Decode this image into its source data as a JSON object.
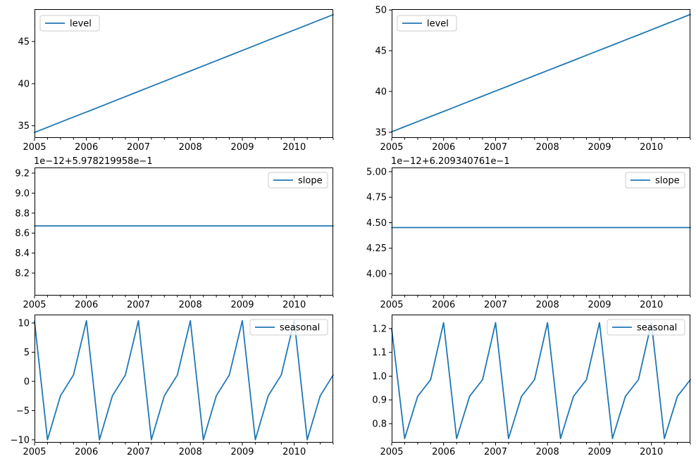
{
  "figure": {
    "background_color": "#ffffff",
    "axis_color": "#000000",
    "legend_border_color": "#cccccc"
  },
  "chart_data": {
    "type": "line",
    "line_color": "#1f77b4",
    "grid": false,
    "xlim": [
      2005.0,
      2010.75
    ],
    "x": [
      2005.0,
      2005.25,
      2005.5,
      2005.75,
      2006.0,
      2006.25,
      2006.5,
      2006.75,
      2007.0,
      2007.25,
      2007.5,
      2007.75,
      2008.0,
      2008.25,
      2008.5,
      2008.75,
      2009.0,
      2009.25,
      2009.5,
      2009.75,
      2010.0,
      2010.25,
      2010.5,
      2010.75
    ],
    "x_tick_values": [
      2005,
      2006,
      2007,
      2008,
      2009,
      2010
    ],
    "x_tick_labels": [
      "2005",
      "2006",
      "2007",
      "2008",
      "2009",
      "2010"
    ],
    "x_minor_tick_interval": 0.25,
    "subplots": [
      {
        "name": "level-additive",
        "row": 0,
        "col": 0,
        "legend": "level",
        "legend_position": "upper left",
        "ylim": [
          33.55,
          48.85
        ],
        "yticks": {
          "values": [
            35,
            40,
            45
          ],
          "labels": [
            "35",
            "40",
            "45"
          ]
        },
        "offset_text": null,
        "values": [
          34.2,
          34.81,
          35.42,
          36.03,
          36.63,
          37.24,
          37.85,
          38.46,
          39.07,
          39.68,
          40.29,
          40.9,
          41.5,
          42.11,
          42.72,
          43.33,
          43.94,
          44.55,
          45.16,
          45.77,
          46.37,
          46.98,
          47.59,
          48.2
        ]
      },
      {
        "name": "level-multiplicative",
        "row": 0,
        "col": 1,
        "legend": "level",
        "legend_position": "upper left",
        "ylim": [
          34.3,
          50.1
        ],
        "yticks": {
          "values": [
            35,
            40,
            45,
            50
          ],
          "labels": [
            "35",
            "40",
            "45",
            "50"
          ]
        },
        "offset_text": null,
        "values": [
          35.05,
          35.68,
          36.3,
          36.93,
          37.55,
          38.18,
          38.81,
          39.43,
          40.06,
          40.68,
          41.31,
          41.94,
          42.56,
          43.19,
          43.81,
          44.44,
          45.07,
          45.69,
          46.32,
          46.94,
          47.57,
          48.2,
          48.82,
          49.45
        ]
      },
      {
        "name": "slope-additive",
        "row": 1,
        "col": 0,
        "legend": "slope",
        "legend_position": "upper right",
        "ylim": [
          7.975,
          9.256
        ],
        "yticks": {
          "values": [
            8.2,
            8.4,
            8.6,
            8.8,
            9.0,
            9.2
          ],
          "labels": [
            "8.2",
            "8.4",
            "8.6",
            "8.8",
            "9.0",
            "9.2"
          ]
        },
        "offset_text": "1e−12+5.978219958e−1",
        "values": [
          8.672,
          8.672,
          8.672,
          8.672,
          8.672,
          8.672,
          8.672,
          8.672,
          8.672,
          8.672,
          8.672,
          8.672,
          8.672,
          8.672,
          8.672,
          8.672,
          8.672,
          8.672,
          8.672,
          8.672,
          8.672,
          8.672,
          8.672,
          8.672
        ]
      },
      {
        "name": "slope-multiplicative",
        "row": 1,
        "col": 1,
        "legend": "slope",
        "legend_position": "upper right",
        "ylim": [
          3.786,
          5.041
        ],
        "yticks": {
          "values": [
            4.0,
            4.25,
            4.5,
            4.75,
            5.0
          ],
          "labels": [
            "4.00",
            "4.25",
            "4.50",
            "4.75",
            "5.00"
          ]
        },
        "offset_text": "1e−12+6.209340761e−1",
        "values": [
          4.452,
          4.452,
          4.452,
          4.452,
          4.452,
          4.452,
          4.452,
          4.452,
          4.452,
          4.452,
          4.452,
          4.452,
          4.452,
          4.452,
          4.452,
          4.452,
          4.452,
          4.452,
          4.452,
          4.452,
          4.452,
          4.452,
          4.452,
          4.452
        ]
      },
      {
        "name": "seasonal-additive",
        "row": 2,
        "col": 0,
        "legend": "seasonal",
        "legend_position": "upper right",
        "ylim": [
          -10.5,
          11.45
        ],
        "yticks": {
          "values": [
            -10,
            -5,
            0,
            5,
            10
          ],
          "labels": [
            "−10",
            "−5",
            "0",
            "5",
            "10"
          ]
        },
        "offset_text": null,
        "values": [
          10.3,
          -10.0,
          -2.45,
          1.1,
          10.4,
          -10.0,
          -2.45,
          1.1,
          10.4,
          -10.0,
          -2.45,
          1.1,
          10.4,
          -10.0,
          -2.45,
          1.1,
          10.4,
          -10.0,
          -2.45,
          1.1,
          10.4,
          -10.0,
          -2.45,
          1.1
        ]
      },
      {
        "name": "seasonal-multiplicative",
        "row": 2,
        "col": 1,
        "legend": "seasonal",
        "legend_position": "upper right",
        "ylim": [
          0.72,
          1.259
        ],
        "yticks": {
          "values": [
            0.8,
            0.9,
            1.0,
            1.1,
            1.2
          ],
          "labels": [
            "0.8",
            "0.9",
            "1.0",
            "1.1",
            "1.2"
          ]
        },
        "offset_text": null,
        "values": [
          1.2,
          0.7375,
          0.915,
          0.985,
          1.225,
          0.7375,
          0.915,
          0.985,
          1.225,
          0.7375,
          0.915,
          0.985,
          1.225,
          0.7375,
          0.915,
          0.985,
          1.225,
          0.7375,
          0.915,
          0.985,
          1.225,
          0.7375,
          0.915,
          0.985
        ]
      }
    ]
  }
}
